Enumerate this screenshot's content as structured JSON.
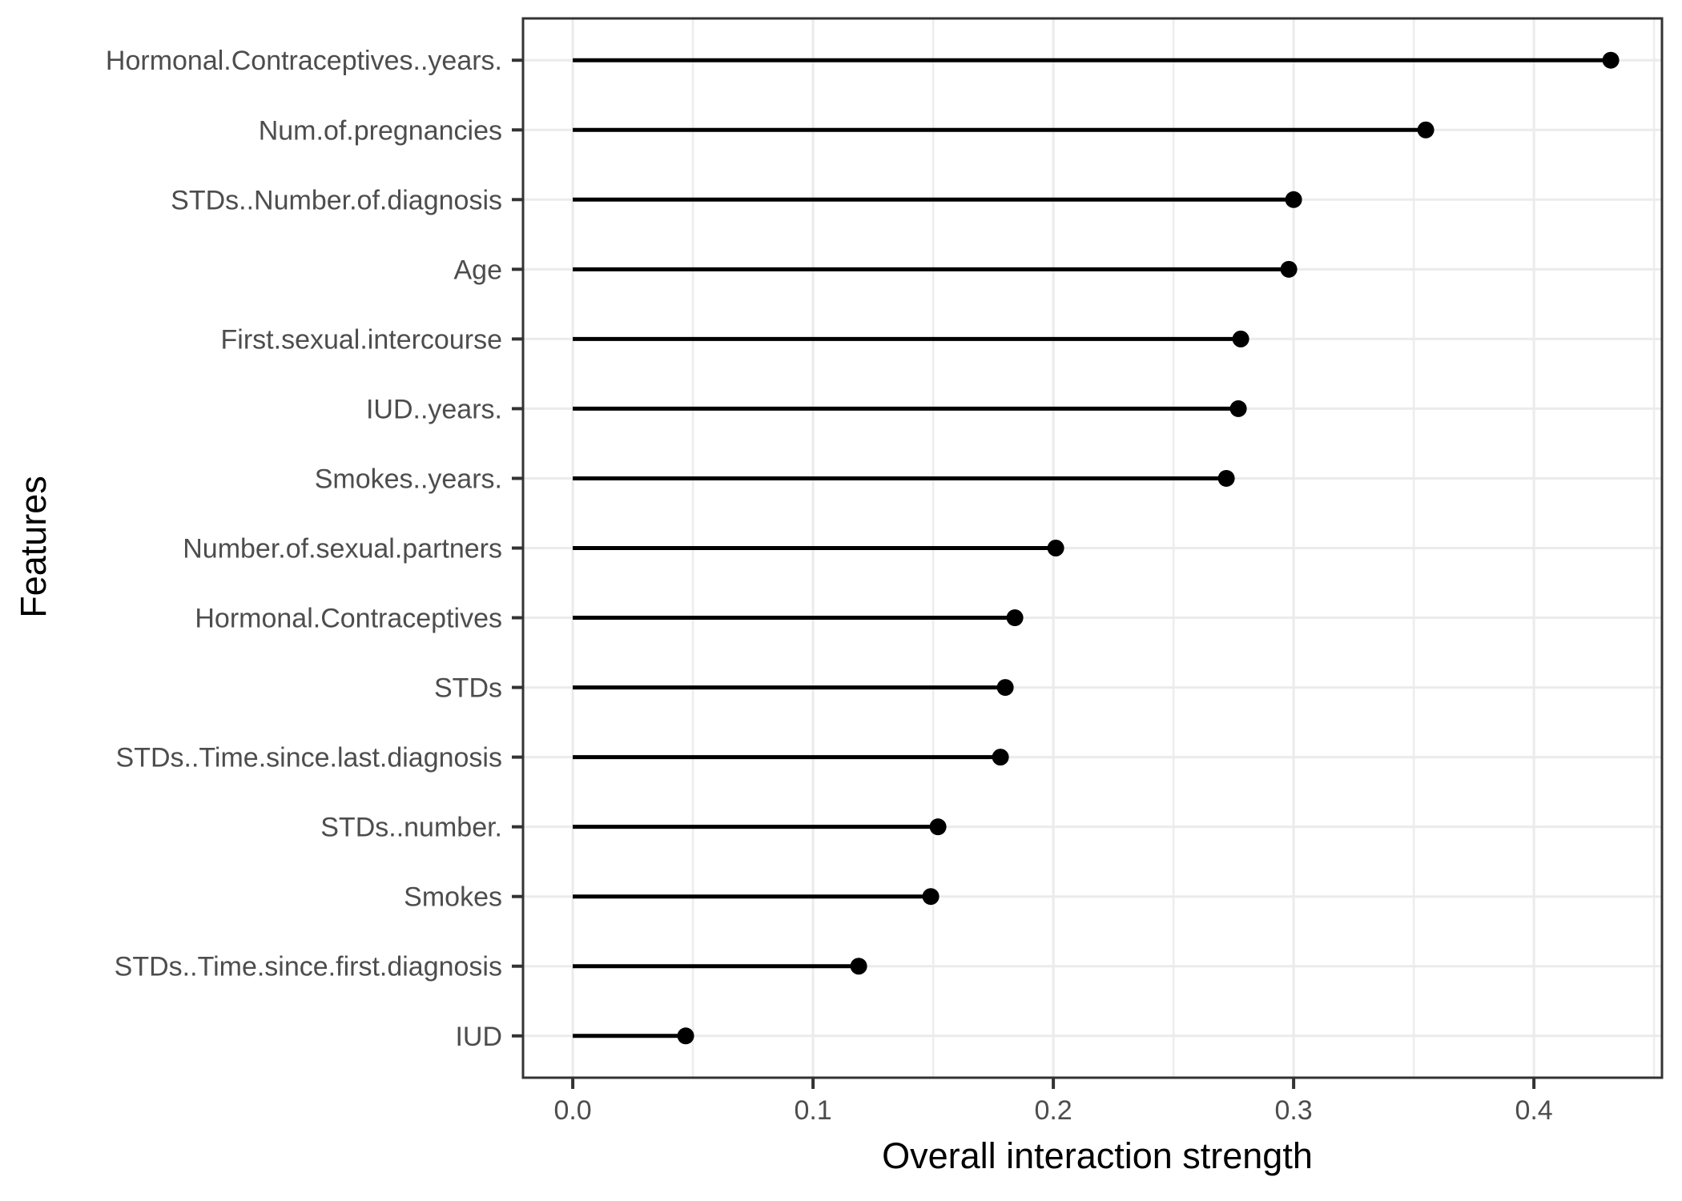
{
  "chart_data": {
    "type": "lollipop",
    "orientation": "horizontal",
    "title": "",
    "xlabel": "Overall interaction strength",
    "ylabel": "Features",
    "categories": [
      "Hormonal.Contraceptives..years.",
      "Num.of.pregnancies",
      "STDs..Number.of.diagnosis",
      "Age",
      "First.sexual.intercourse",
      "IUD..years.",
      "Smokes..years.",
      "Number.of.sexual.partners",
      "Hormonal.Contraceptives",
      "STDs",
      "STDs..Time.since.last.diagnosis",
      "STDs..number.",
      "Smokes",
      "STDs..Time.since.first.diagnosis",
      "IUD"
    ],
    "values": [
      0.432,
      0.355,
      0.3,
      0.298,
      0.278,
      0.277,
      0.272,
      0.201,
      0.184,
      0.18,
      0.178,
      0.152,
      0.149,
      0.119,
      0.047
    ],
    "xlim": [
      -0.0207,
      0.4533
    ],
    "x_major_ticks": [
      0.0,
      0.1,
      0.2,
      0.3,
      0.4
    ],
    "x_tick_labels": [
      "0.0",
      "0.1",
      "0.2",
      "0.3",
      "0.4"
    ],
    "x_minor_gridlines": [
      0.05,
      0.15,
      0.25,
      0.35,
      0.45
    ],
    "grid": {
      "vertical": "major+minor",
      "horizontal": "major-per-category"
    },
    "legend": "none"
  },
  "colors": {
    "background": "#FFFFFF",
    "panel_background": "#FFFFFF",
    "panel_border": "#333333",
    "grid_major": "#EBEBEB",
    "grid_minor": "#EDEDED",
    "segment": "#000000",
    "point": "#000000",
    "tick_mark": "#333333",
    "tick_label": "#4D4D4D",
    "axis_title": "#000000"
  }
}
